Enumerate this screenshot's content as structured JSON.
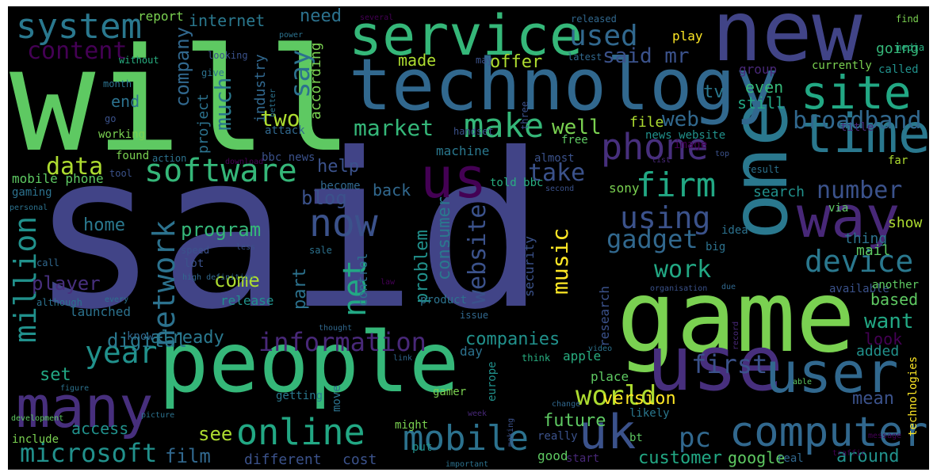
{
  "cloud": {
    "background": "#000000",
    "palette": [
      "#440154",
      "#472f7d",
      "#3b528b",
      "#2c728e",
      "#21918c",
      "#28ae80",
      "#5ec962",
      "#addc30",
      "#fde725"
    ],
    "words": [
      {
        "text": "said",
        "color": "#414487"
      },
      {
        "text": "will",
        "color": "#5ec962"
      },
      {
        "text": "new",
        "color": "#414487"
      },
      {
        "text": "people",
        "color": "#35b779"
      },
      {
        "text": "game",
        "color": "#7ad151"
      },
      {
        "text": "one",
        "color": "#2a788e"
      },
      {
        "text": "technology",
        "color": "#31688e"
      },
      {
        "text": "use",
        "color": "#472f7d"
      },
      {
        "text": "user",
        "color": "#31688e"
      },
      {
        "text": "service",
        "color": "#35b779"
      },
      {
        "text": "site",
        "color": "#22a884"
      },
      {
        "text": "time",
        "color": "#2a788e"
      },
      {
        "text": "us",
        "color": "#440154"
      },
      {
        "text": "way",
        "color": "#482878"
      },
      {
        "text": "many",
        "color": "#472f7d"
      },
      {
        "text": "uk",
        "color": "#3b528b"
      },
      {
        "text": "computer",
        "color": "#31688e"
      },
      {
        "text": "system",
        "color": "#2a788e"
      },
      {
        "text": "mobile",
        "color": "#2c728e"
      },
      {
        "text": "online",
        "color": "#22a884"
      },
      {
        "text": "phone",
        "color": "#472f7d"
      },
      {
        "text": "make",
        "color": "#35b779"
      },
      {
        "text": "software",
        "color": "#35b779"
      },
      {
        "text": "now",
        "color": "#3b528b"
      },
      {
        "text": "network",
        "color": "#2c728e"
      },
      {
        "text": "firm",
        "color": "#22a884"
      },
      {
        "text": "million",
        "color": "#21918c"
      },
      {
        "text": "year",
        "color": "#21918c"
      },
      {
        "text": "device",
        "color": "#2a788e"
      },
      {
        "text": "using",
        "color": "#3b528b"
      },
      {
        "text": "microsoft",
        "color": "#21918c"
      },
      {
        "text": "say",
        "color": "#2c728e"
      },
      {
        "text": "used",
        "color": "#31688e"
      },
      {
        "text": "information",
        "color": "#482878"
      },
      {
        "text": "net",
        "color": "#22a884"
      },
      {
        "text": "website",
        "color": "#3b528b"
      },
      {
        "text": "broadband",
        "color": "#31688e"
      },
      {
        "text": "first",
        "color": "#3b528b"
      },
      {
        "text": "gadget",
        "color": "#31688e"
      },
      {
        "text": "number",
        "color": "#3b528b"
      },
      {
        "text": "world",
        "color": "#addc30"
      },
      {
        "text": "data",
        "color": "#addc30"
      },
      {
        "text": "take",
        "color": "#3b528b"
      },
      {
        "text": "pc",
        "color": "#31688e"
      },
      {
        "text": "content",
        "color": "#440154"
      },
      {
        "text": "film",
        "color": "#31688e"
      },
      {
        "text": "market",
        "color": "#35b779"
      },
      {
        "text": "well",
        "color": "#7ad151"
      },
      {
        "text": "work",
        "color": "#22a884"
      },
      {
        "text": "music",
        "color": "#fde725"
      },
      {
        "text": "want",
        "color": "#22a884"
      },
      {
        "text": "web",
        "color": "#31688e"
      },
      {
        "text": "said mr",
        "color": "#3b528b"
      },
      {
        "text": "two",
        "color": "#addc30"
      },
      {
        "text": "much",
        "color": "#2a788e"
      },
      {
        "text": "company",
        "color": "#31688e"
      },
      {
        "text": "program",
        "color": "#35b779"
      },
      {
        "text": "player",
        "color": "#472f7d"
      },
      {
        "text": "version",
        "color": "#fde725"
      },
      {
        "text": "mean",
        "color": "#3b528b"
      },
      {
        "text": "digital",
        "color": "#2a788e"
      },
      {
        "text": "home",
        "color": "#2a788e"
      },
      {
        "text": "come",
        "color": "#addc30"
      },
      {
        "text": "see",
        "color": "#addc30"
      },
      {
        "text": "blog",
        "color": "#3b528b"
      },
      {
        "text": "help",
        "color": "#3b528b"
      },
      {
        "text": "tv",
        "color": "#2a788e"
      },
      {
        "text": "end",
        "color": "#2c728e"
      },
      {
        "text": "need",
        "color": "#2c728e"
      },
      {
        "text": "internet",
        "color": "#2a788e"
      },
      {
        "text": "offer",
        "color": "#addc30"
      },
      {
        "text": "made",
        "color": "#addc30"
      },
      {
        "text": "consumer",
        "color": "#2a788e"
      },
      {
        "text": "problem",
        "color": "#21918c"
      },
      {
        "text": "part",
        "color": "#2c728e"
      },
      {
        "text": "already",
        "color": "#2a788e"
      },
      {
        "text": "companies",
        "color": "#21918c"
      },
      {
        "text": "set",
        "color": "#22a884"
      },
      {
        "text": "access",
        "color": "#21918c"
      },
      {
        "text": "future",
        "color": "#5ec962"
      },
      {
        "text": "customer",
        "color": "#22a884"
      },
      {
        "text": "google",
        "color": "#5ec962"
      },
      {
        "text": "around",
        "color": "#21918c"
      },
      {
        "text": "based",
        "color": "#5ec962"
      },
      {
        "text": "even",
        "color": "#35b779"
      },
      {
        "text": "look",
        "color": "#440154"
      },
      {
        "text": "still",
        "color": "#22a884"
      },
      {
        "text": "sony",
        "color": "#7ad151"
      },
      {
        "text": "search",
        "color": "#21918c"
      },
      {
        "text": "back",
        "color": "#31688e"
      },
      {
        "text": "file",
        "color": "#addc30"
      },
      {
        "text": "machine",
        "color": "#2a788e"
      },
      {
        "text": "play",
        "color": "#fde725"
      },
      {
        "text": "going",
        "color": "#35b779"
      },
      {
        "text": "according",
        "color": "#7ad151"
      },
      {
        "text": "project",
        "color": "#2c728e"
      },
      {
        "text": "industry",
        "color": "#31688e"
      },
      {
        "text": "report",
        "color": "#7ad151"
      },
      {
        "text": "mobile phone",
        "color": "#5ec962"
      },
      {
        "text": "different",
        "color": "#3b528b"
      },
      {
        "text": "cost",
        "color": "#3b528b"
      },
      {
        "text": "good",
        "color": "#5ec962"
      },
      {
        "text": "thing",
        "color": "#2c728e"
      },
      {
        "text": "mail",
        "color": "#5ec962"
      },
      {
        "text": "show",
        "color": "#addc30"
      },
      {
        "text": "added",
        "color": "#21918c"
      },
      {
        "text": "apple",
        "color": "#28ae80"
      },
      {
        "text": "place",
        "color": "#5ec962"
      },
      {
        "text": "day",
        "color": "#2c728e"
      },
      {
        "text": "security",
        "color": "#3b528b"
      },
      {
        "text": "control",
        "color": "#2c728e"
      },
      {
        "text": "research",
        "color": "#3b528b"
      },
      {
        "text": "image",
        "color": "#440154"
      },
      {
        "text": "title",
        "color": "#482878"
      },
      {
        "text": "news website",
        "color": "#21918c"
      },
      {
        "text": "group",
        "color": "#482878"
      },
      {
        "text": "currently",
        "color": "#7ad151"
      },
      {
        "text": "called",
        "color": "#21918c"
      },
      {
        "text": "launched",
        "color": "#2c728e"
      },
      {
        "text": "know",
        "color": "#31688e"
      },
      {
        "text": "gaming",
        "color": "#2c728e"
      },
      {
        "text": "include",
        "color": "#7ad151"
      },
      {
        "text": "might",
        "color": "#7ad151"
      },
      {
        "text": "put",
        "color": "#21918c"
      },
      {
        "text": "release",
        "color": "#21918c"
      },
      {
        "text": "although",
        "color": "#2c728e"
      },
      {
        "text": "lot",
        "color": "#3b528b"
      },
      {
        "text": "speed",
        "color": "#3b528b"
      },
      {
        "text": "call",
        "color": "#31688e"
      },
      {
        "text": "tool",
        "color": "#3b528b"
      },
      {
        "text": "found",
        "color": "#7ad151"
      },
      {
        "text": "action",
        "color": "#2c728e"
      },
      {
        "text": "bbc news",
        "color": "#3b528b"
      },
      {
        "text": "working",
        "color": "#7ad151"
      },
      {
        "text": "attack",
        "color": "#31688e"
      },
      {
        "text": "handset",
        "color": "#3b528b"
      },
      {
        "text": "told bbc",
        "color": "#28ae80"
      },
      {
        "text": "almost",
        "color": "#3b528b"
      },
      {
        "text": "free",
        "color": "#5ec962"
      },
      {
        "text": "become",
        "color": "#31688e"
      },
      {
        "text": "sale",
        "color": "#2c728e"
      },
      {
        "text": "product",
        "color": "#2c728e"
      },
      {
        "text": "issue",
        "color": "#31688e"
      },
      {
        "text": "think",
        "color": "#28ae80"
      },
      {
        "text": "europe",
        "color": "#21918c"
      },
      {
        "text": "gamer",
        "color": "#7ad151"
      },
      {
        "text": "move",
        "color": "#2c728e"
      },
      {
        "text": "getting",
        "color": "#2a788e"
      },
      {
        "text": "link",
        "color": "#31688e"
      },
      {
        "text": "really",
        "color": "#3b528b"
      },
      {
        "text": "start",
        "color": "#482878"
      },
      {
        "text": "real",
        "color": "#31688e"
      },
      {
        "text": "likely",
        "color": "#2a788e"
      },
      {
        "text": "bt",
        "color": "#5ec962"
      },
      {
        "text": "technologies",
        "color": "#fde725"
      },
      {
        "text": "traffic",
        "color": "#440154"
      },
      {
        "text": "message",
        "color": "#440154"
      },
      {
        "text": "available",
        "color": "#3b528b"
      },
      {
        "text": "another",
        "color": "#5ec962"
      },
      {
        "text": "via",
        "color": "#5ec962"
      },
      {
        "text": "big",
        "color": "#2c728e"
      },
      {
        "text": "idea",
        "color": "#2c728e"
      },
      {
        "text": "result",
        "color": "#2c728e"
      },
      {
        "text": "list",
        "color": "#482878"
      },
      {
        "text": "far",
        "color": "#addc30"
      },
      {
        "text": "media",
        "color": "#28ae80"
      },
      {
        "text": "find",
        "color": "#7ad151"
      },
      {
        "text": "released",
        "color": "#31688e"
      },
      {
        "text": "several",
        "color": "#440154"
      },
      {
        "text": "power",
        "color": "#2c728e"
      },
      {
        "text": "without",
        "color": "#28ae80"
      },
      {
        "text": "looking",
        "color": "#3b528b"
      },
      {
        "text": "give",
        "color": "#2c728e"
      },
      {
        "text": "month",
        "color": "#2c728e"
      },
      {
        "text": "go",
        "color": "#3b528b"
      },
      {
        "text": "better",
        "color": "#2c728e"
      },
      {
        "text": "latest",
        "color": "#31688e"
      },
      {
        "text": "may",
        "color": "#3b528b"
      },
      {
        "text": "three",
        "color": "#3b528b"
      },
      {
        "text": "download",
        "color": "#440154"
      },
      {
        "text": "second",
        "color": "#3b528b"
      },
      {
        "text": "top",
        "color": "#3b528b"
      },
      {
        "text": "personal",
        "color": "#2c728e"
      },
      {
        "text": "less",
        "color": "#3b528b"
      },
      {
        "text": "every",
        "color": "#2c728e"
      },
      {
        "text": "high definition",
        "color": "#31688e"
      },
      {
        "text": "thought",
        "color": "#31688e"
      },
      {
        "text": "video",
        "color": "#2c728e"
      },
      {
        "text": "figure",
        "color": "#2c728e"
      },
      {
        "text": "picture",
        "color": "#2c728e"
      },
      {
        "text": "development",
        "color": "#5ec962"
      },
      {
        "text": "week",
        "color": "#482878"
      },
      {
        "text": "making",
        "color": "#3b528b"
      },
      {
        "text": "change",
        "color": "#31688e"
      },
      {
        "text": "important",
        "color": "#2c728e"
      },
      {
        "text": "law",
        "color": "#440154"
      },
      {
        "text": "organisation",
        "color": "#3b528b"
      },
      {
        "text": "due",
        "color": "#31688e"
      },
      {
        "text": "record",
        "color": "#482878"
      },
      {
        "text": "able",
        "color": "#5ec962"
      }
    ]
  }
}
